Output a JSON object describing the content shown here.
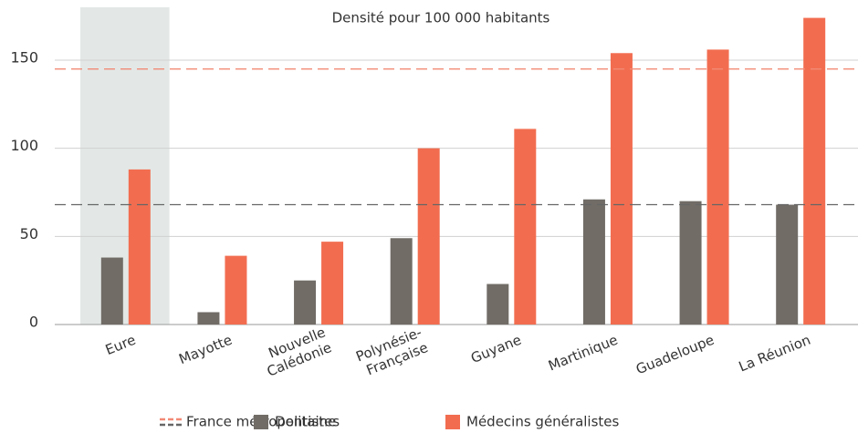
{
  "chart_data": {
    "type": "bar",
    "title": "Densité pour 100 000 habitants",
    "categories": [
      "Eure",
      "Mayotte",
      "Nouvelle\nCalédonie",
      "Polynésie-\nFrançaise",
      "Guyane",
      "Martinique",
      "Guadeloupe",
      "La Réunion"
    ],
    "series": [
      {
        "name": "Dentistes",
        "color": "#716c66",
        "values": [
          38,
          7,
          25,
          49,
          23,
          71,
          70,
          68
        ]
      },
      {
        "name": "Médecins généralistes",
        "color": "#f26d50",
        "values": [
          88,
          39,
          47,
          100,
          111,
          154,
          156,
          174
        ]
      }
    ],
    "reference": {
      "name": "France métropolitaine",
      "values": [
        68,
        145
      ],
      "colors": [
        "#666666",
        "#f28a75"
      ]
    },
    "highlight": 0,
    "ylim": [
      0,
      180
    ],
    "yticks": [
      0,
      50,
      100,
      150
    ],
    "grid": true
  }
}
